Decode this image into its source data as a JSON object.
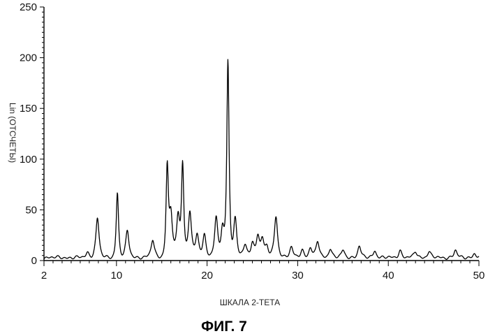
{
  "chart_data": {
    "type": "line",
    "title": "",
    "xlabel": "ШКАЛА 2-ТЕТА",
    "ylabel": "Lin (ОТСЧЕТЫ)",
    "caption": "ФИГ. 7",
    "xlim": [
      2,
      50
    ],
    "ylim": [
      0,
      250
    ],
    "x_ticks": [
      "2",
      "10",
      "20",
      "30",
      "40",
      "50"
    ],
    "x_tick_values": [
      2,
      10,
      20,
      30,
      40,
      50
    ],
    "y_ticks": [
      "0",
      "50",
      "100",
      "150",
      "200",
      "250"
    ],
    "y_tick_values": [
      0,
      50,
      100,
      150,
      200,
      250
    ],
    "grid": false,
    "line_color": "#000000",
    "baseline": 3,
    "peaks": [
      {
        "x": 6.8,
        "y": 8
      },
      {
        "x": 7.9,
        "y": 42
      },
      {
        "x": 10.1,
        "y": 67
      },
      {
        "x": 11.2,
        "y": 29
      },
      {
        "x": 14.0,
        "y": 20
      },
      {
        "x": 15.6,
        "y": 90
      },
      {
        "x": 16.0,
        "y": 46
      },
      {
        "x": 16.8,
        "y": 44
      },
      {
        "x": 17.3,
        "y": 94
      },
      {
        "x": 18.1,
        "y": 49
      },
      {
        "x": 18.9,
        "y": 24
      },
      {
        "x": 19.7,
        "y": 24
      },
      {
        "x": 21.0,
        "y": 41
      },
      {
        "x": 21.7,
        "y": 30
      },
      {
        "x": 22.3,
        "y": 195
      },
      {
        "x": 23.1,
        "y": 41
      },
      {
        "x": 24.2,
        "y": 14
      },
      {
        "x": 25.0,
        "y": 16
      },
      {
        "x": 25.6,
        "y": 24
      },
      {
        "x": 26.1,
        "y": 20
      },
      {
        "x": 26.6,
        "y": 12
      },
      {
        "x": 27.6,
        "y": 43
      },
      {
        "x": 29.3,
        "y": 12
      },
      {
        "x": 30.5,
        "y": 10
      },
      {
        "x": 31.4,
        "y": 12
      },
      {
        "x": 32.2,
        "y": 19
      },
      {
        "x": 33.6,
        "y": 12
      },
      {
        "x": 35.0,
        "y": 10
      },
      {
        "x": 36.8,
        "y": 14
      },
      {
        "x": 38.5,
        "y": 10
      },
      {
        "x": 41.3,
        "y": 10
      },
      {
        "x": 43.0,
        "y": 9
      },
      {
        "x": 44.5,
        "y": 9
      },
      {
        "x": 47.4,
        "y": 10
      },
      {
        "x": 49.5,
        "y": 7
      }
    ]
  }
}
